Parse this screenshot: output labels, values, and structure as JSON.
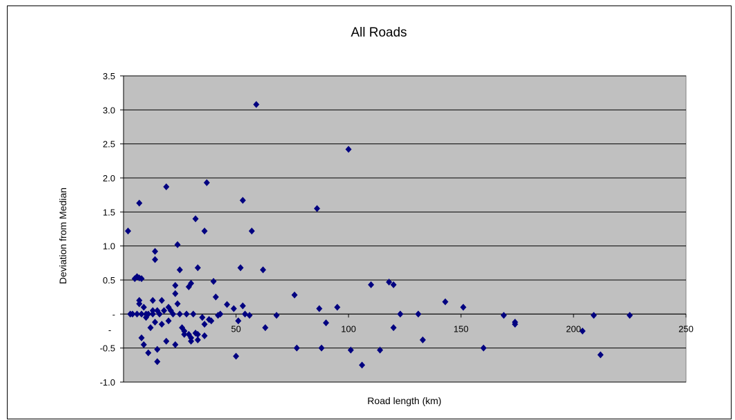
{
  "chart_data": {
    "type": "scatter",
    "title": "All Roads",
    "xlabel": "Road length (km)",
    "ylabel": "Deviation from Median",
    "xlim": [
      0,
      250
    ],
    "ylim": [
      -1.0,
      3.5
    ],
    "x_ticks": [
      0,
      50,
      100,
      150,
      200,
      250
    ],
    "x_tick_labels": [
      "",
      "50",
      "100",
      "150",
      "200",
      "250"
    ],
    "y_ticks": [
      -1.0,
      -0.5,
      0,
      0.5,
      1.0,
      1.5,
      2.0,
      2.5,
      3.0,
      3.5
    ],
    "y_tick_labels": [
      "-1.0",
      "-0.5",
      "-",
      "0.5",
      "1.0",
      "1.5",
      "2.0",
      "2.5",
      "3.0",
      "3.5"
    ],
    "extra_label": "-",
    "grid": "horizontal",
    "plot_background": "#c0c0c0",
    "marker_color": "#000080",
    "points": [
      [
        2,
        1.22
      ],
      [
        3,
        0.0
      ],
      [
        4,
        0.0
      ],
      [
        5,
        0.52
      ],
      [
        6,
        0.55
      ],
      [
        6,
        0.0
      ],
      [
        7,
        1.63
      ],
      [
        7,
        0.2
      ],
      [
        7,
        0.53
      ],
      [
        7,
        0.15
      ],
      [
        8,
        0.52
      ],
      [
        8,
        -0.35
      ],
      [
        8,
        0.0
      ],
      [
        9,
        -0.45
      ],
      [
        9,
        0.1
      ],
      [
        10,
        -0.05
      ],
      [
        10,
        0.0
      ],
      [
        11,
        -0.57
      ],
      [
        11,
        0.0
      ],
      [
        12,
        -0.2
      ],
      [
        13,
        0.2
      ],
      [
        13,
        0.05
      ],
      [
        13,
        0.0
      ],
      [
        14,
        0.92
      ],
      [
        14,
        0.8
      ],
      [
        14,
        -0.12
      ],
      [
        15,
        -0.52
      ],
      [
        15,
        -0.7
      ],
      [
        15,
        0.05
      ],
      [
        16,
        0.0
      ],
      [
        17,
        0.2
      ],
      [
        17,
        -0.15
      ],
      [
        18,
        0.05
      ],
      [
        19,
        -0.4
      ],
      [
        19,
        1.87
      ],
      [
        20,
        0.1
      ],
      [
        20,
        -0.1
      ],
      [
        21,
        0.05
      ],
      [
        22,
        0.0
      ],
      [
        23,
        0.42
      ],
      [
        23,
        0.3
      ],
      [
        23,
        -0.45
      ],
      [
        24,
        1.02
      ],
      [
        24,
        0.15
      ],
      [
        25,
        0.65
      ],
      [
        25,
        0.0
      ],
      [
        26,
        -0.2
      ],
      [
        27,
        -0.25
      ],
      [
        27,
        -0.3
      ],
      [
        28,
        0.0
      ],
      [
        29,
        -0.3
      ],
      [
        29,
        0.4
      ],
      [
        30,
        -0.4
      ],
      [
        30,
        0.45
      ],
      [
        30,
        -0.35
      ],
      [
        31,
        0.0
      ],
      [
        32,
        1.4
      ],
      [
        32,
        -0.28
      ],
      [
        33,
        0.68
      ],
      [
        33,
        -0.38
      ],
      [
        33,
        -0.3
      ],
      [
        35,
        -0.05
      ],
      [
        36,
        1.22
      ],
      [
        36,
        -0.15
      ],
      [
        36,
        -0.32
      ],
      [
        37,
        1.93
      ],
      [
        38,
        -0.08
      ],
      [
        39,
        -0.1
      ],
      [
        40,
        0.48
      ],
      [
        41,
        0.25
      ],
      [
        42,
        -0.02
      ],
      [
        43,
        0.0
      ],
      [
        46,
        0.14
      ],
      [
        49,
        0.08
      ],
      [
        50,
        -0.62
      ],
      [
        51,
        -0.1
      ],
      [
        52,
        0.68
      ],
      [
        53,
        0.12
      ],
      [
        53,
        1.67
      ],
      [
        54,
        0.0
      ],
      [
        56,
        -0.02
      ],
      [
        57,
        1.22
      ],
      [
        59,
        3.08
      ],
      [
        62,
        0.65
      ],
      [
        63,
        -0.2
      ],
      [
        68,
        -0.02
      ],
      [
        76,
        0.28
      ],
      [
        77,
        -0.5
      ],
      [
        86,
        1.55
      ],
      [
        87,
        0.08
      ],
      [
        88,
        -0.5
      ],
      [
        90,
        -0.13
      ],
      [
        95,
        0.1
      ],
      [
        100,
        2.42
      ],
      [
        101,
        -0.53
      ],
      [
        106,
        -0.75
      ],
      [
        110,
        0.43
      ],
      [
        114,
        -0.53
      ],
      [
        118,
        0.47
      ],
      [
        120,
        0.43
      ],
      [
        120,
        -0.2
      ],
      [
        123,
        0.0
      ],
      [
        131,
        0.0
      ],
      [
        133,
        -0.38
      ],
      [
        143,
        0.18
      ],
      [
        151,
        0.1
      ],
      [
        160,
        -0.5
      ],
      [
        169,
        -0.02
      ],
      [
        174,
        -0.12
      ],
      [
        174,
        -0.15
      ],
      [
        204,
        -0.25
      ],
      [
        209,
        -0.02
      ],
      [
        212,
        -0.6
      ],
      [
        225,
        -0.02
      ]
    ]
  }
}
